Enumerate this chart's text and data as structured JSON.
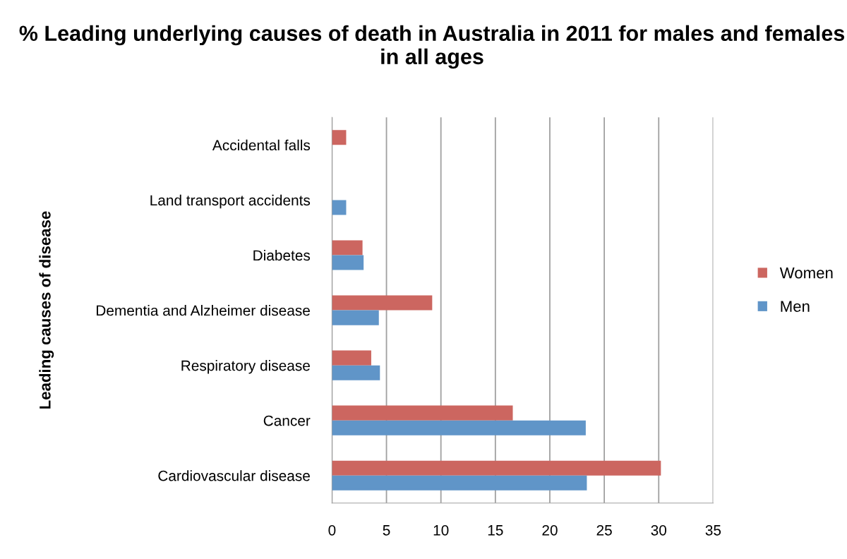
{
  "chart_data": {
    "type": "bar",
    "orientation": "horizontal",
    "title": "% Leading underlying causes of death in Australia in 2011 for males and females in all ages",
    "ylabel": "Leading causes of disease",
    "categories": [
      "Accidental falls",
      "Land transport accidents",
      "Diabetes",
      "Dementia and Alzheimer disease",
      "Respiratory disease",
      "Cancer",
      "Cardiovascular disease"
    ],
    "series": [
      {
        "name": "Women",
        "color": "#cc6660",
        "values": [
          1.3,
          null,
          2.8,
          9.2,
          3.6,
          16.6,
          30.2
        ]
      },
      {
        "name": "Men",
        "color": "#6095c8",
        "values": [
          null,
          1.3,
          2.9,
          4.3,
          4.4,
          23.3,
          23.4
        ]
      }
    ],
    "xlim": [
      0,
      35
    ],
    "xticks": [
      0,
      5,
      10,
      15,
      20,
      25,
      30,
      35
    ],
    "grid": "x",
    "legend": "right"
  }
}
